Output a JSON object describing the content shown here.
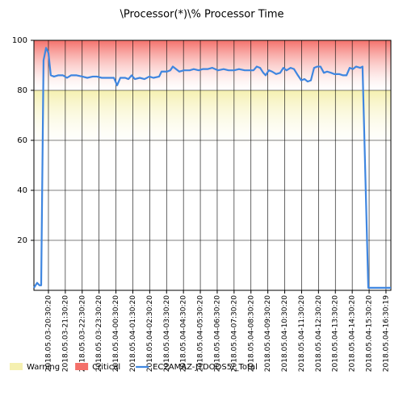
{
  "chart_data": {
    "type": "line",
    "title": "\\Processor(*)\\% Processor Time",
    "xticks": [
      {
        "value": 0,
        "label": "2018.05.03-20:30:20"
      },
      {
        "value": 1,
        "label": "2018.05.03-21:30:20"
      },
      {
        "value": 2,
        "label": "2018.05.03-22:30:20"
      },
      {
        "value": 3,
        "label": "2018.05.03-23:30:20"
      },
      {
        "value": 4,
        "label": "2018.05.04-00:30:20"
      },
      {
        "value": 5,
        "label": "2018.05.04-01:30:20"
      },
      {
        "value": 6,
        "label": "2018.05.04-02:30:20"
      },
      {
        "value": 7,
        "label": "2018.05.04-03:30:20"
      },
      {
        "value": 8,
        "label": "2018.05.04-04:30:20"
      },
      {
        "value": 9,
        "label": "2018.05.04-05:30:20"
      },
      {
        "value": 10,
        "label": "2018.05.04-06:30:20"
      },
      {
        "value": 11,
        "label": "2018.05.04-07:30:20"
      },
      {
        "value": 12,
        "label": "2018.05.04-08:30:20"
      },
      {
        "value": 13,
        "label": "2018.05.04-09:30:20"
      },
      {
        "value": 14,
        "label": "2018.05.04-10:30:20"
      },
      {
        "value": 15,
        "label": "2018.05.04-11:30:20"
      },
      {
        "value": 16,
        "label": "2018.05.04-12:30:20"
      },
      {
        "value": 17,
        "label": "2018.05.04-13:30:20"
      },
      {
        "value": 18,
        "label": "2018.05.04-14:30:20"
      },
      {
        "value": 19,
        "label": "2018.05.04-15:30:20"
      },
      {
        "value": 20,
        "label": "2018.05.04-16:30:19"
      }
    ],
    "xlim": [
      -0.86,
      20.29
    ],
    "ylim": [
      0,
      100
    ],
    "yticks": [
      20,
      40,
      60,
      80,
      100
    ],
    "grid": true,
    "bands": [
      {
        "name": "Warning",
        "color": "#f5f0b0",
        "range": [
          55,
          80
        ]
      },
      {
        "name": "Critical",
        "color": "#f4706a",
        "range": [
          80,
          100
        ]
      }
    ],
    "series": [
      {
        "name": "EC2AMAZ-JTDOOS5/_Total",
        "color": "#3f86e0",
        "x": [
          -0.86,
          -0.67,
          -0.53,
          -0.43,
          -0.29,
          -0.14,
          0,
          0.14,
          0.33,
          0.57,
          0.86,
          1.1,
          1.34,
          1.67,
          2.01,
          2.3,
          2.63,
          2.87,
          3.16,
          3.44,
          3.88,
          4.07,
          4.26,
          4.55,
          4.74,
          4.93,
          5.12,
          5.41,
          5.69,
          5.98,
          6.22,
          6.56,
          6.7,
          7.03,
          7.22,
          7.37,
          7.56,
          7.75,
          8.04,
          8.37,
          8.61,
          8.9,
          9.14,
          9.43,
          9.71,
          10.05,
          10.38,
          10.67,
          11.0,
          11.29,
          11.63,
          11.91,
          12.15,
          12.34,
          12.54,
          12.73,
          12.87,
          13.06,
          13.25,
          13.49,
          13.73,
          13.92,
          14.11,
          14.35,
          14.55,
          14.78,
          14.98,
          15.17,
          15.36,
          15.55,
          15.74,
          15.93,
          16.12,
          16.32,
          16.51,
          16.75,
          16.94,
          17.22,
          17.46,
          17.66,
          17.85,
          18.04,
          18.23,
          18.47,
          18.61,
          18.95,
          19.23,
          19.62,
          20.1,
          20.29
        ],
        "values": [
          1,
          3,
          2,
          2,
          92,
          97,
          95,
          86,
          85.5,
          86,
          86,
          85,
          86,
          86,
          85.5,
          85,
          85.5,
          85.5,
          85,
          85,
          85,
          82,
          85,
          85,
          84.5,
          86,
          84.5,
          85,
          84.5,
          85.5,
          85,
          85.5,
          87.5,
          87.5,
          88,
          89.5,
          88.5,
          87.5,
          88,
          88,
          88.5,
          88,
          88.5,
          88.5,
          89,
          88,
          88.5,
          88,
          88,
          88.5,
          88,
          88,
          88,
          89.5,
          89,
          87,
          86,
          88,
          87.5,
          86.5,
          87,
          89,
          88,
          89,
          88.5,
          86,
          84,
          84.5,
          83.5,
          84,
          89,
          89.5,
          89.5,
          87,
          87.5,
          87,
          86.5,
          86.5,
          86,
          86,
          89,
          88.5,
          89.5,
          89,
          89.5,
          1,
          1,
          1,
          1,
          1
        ]
      }
    ]
  }
}
